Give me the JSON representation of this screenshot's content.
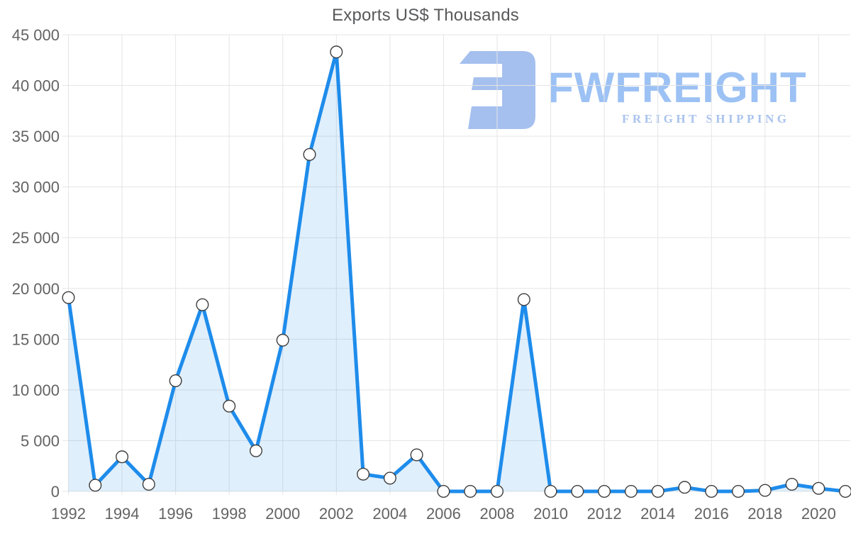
{
  "chart": {
    "title": "Exports US$ Thousands"
  },
  "watermark": {
    "title": "FWFREIGHT",
    "subtitle": "FREIGHT SHIPPING",
    "mark_icon": "reversed-e-freight-mark",
    "mark_color": "#a5c0ee",
    "text_color": "#9cc1f4",
    "subtitle_color": "#a9c3ee"
  },
  "colors": {
    "line": "#1e8ceb",
    "area_fill": "rgba(33,140,235,0.14)",
    "marker_fill": "#ffffff",
    "marker_stroke": "#3d3d3d",
    "gridline": "#e5e5e5",
    "axis_text": "#636363",
    "title_text": "#58595b"
  },
  "chart_data": {
    "type": "area",
    "title": "Exports US$ Thousands",
    "x": [
      1992,
      1993,
      1994,
      1995,
      1996,
      1997,
      1998,
      1999,
      2000,
      2001,
      2002,
      2003,
      2004,
      2005,
      2006,
      2007,
      2008,
      2009,
      2010,
      2011,
      2012,
      2013,
      2014,
      2015,
      2016,
      2017,
      2018,
      2019,
      2020,
      2021
    ],
    "series": [
      {
        "name": "Exports US$ Thousands",
        "values": [
          19100,
          600,
          3400,
          700,
          10900,
          18400,
          8400,
          4000,
          14900,
          33200,
          43300,
          1700,
          1300,
          3600,
          0,
          0,
          0,
          18900,
          0,
          0,
          0,
          0,
          0,
          400,
          0,
          0,
          100,
          700,
          300,
          0
        ]
      }
    ],
    "ylim": [
      0,
      45000
    ],
    "ytick_step": 5000,
    "y_tick_labels": [
      "0",
      "5 000",
      "10 000",
      "15 000",
      "20 000",
      "25 000",
      "30 000",
      "35 000",
      "40 000",
      "45 000"
    ],
    "x_tick_labels": [
      "1992",
      "1994",
      "1996",
      "1998",
      "2000",
      "2002",
      "2004",
      "2006",
      "2008",
      "2010",
      "2012",
      "2014",
      "2016",
      "2018",
      "2020"
    ],
    "xtick_step": 2,
    "grid": true,
    "legend": "none",
    "xlabel": "",
    "ylabel": ""
  }
}
